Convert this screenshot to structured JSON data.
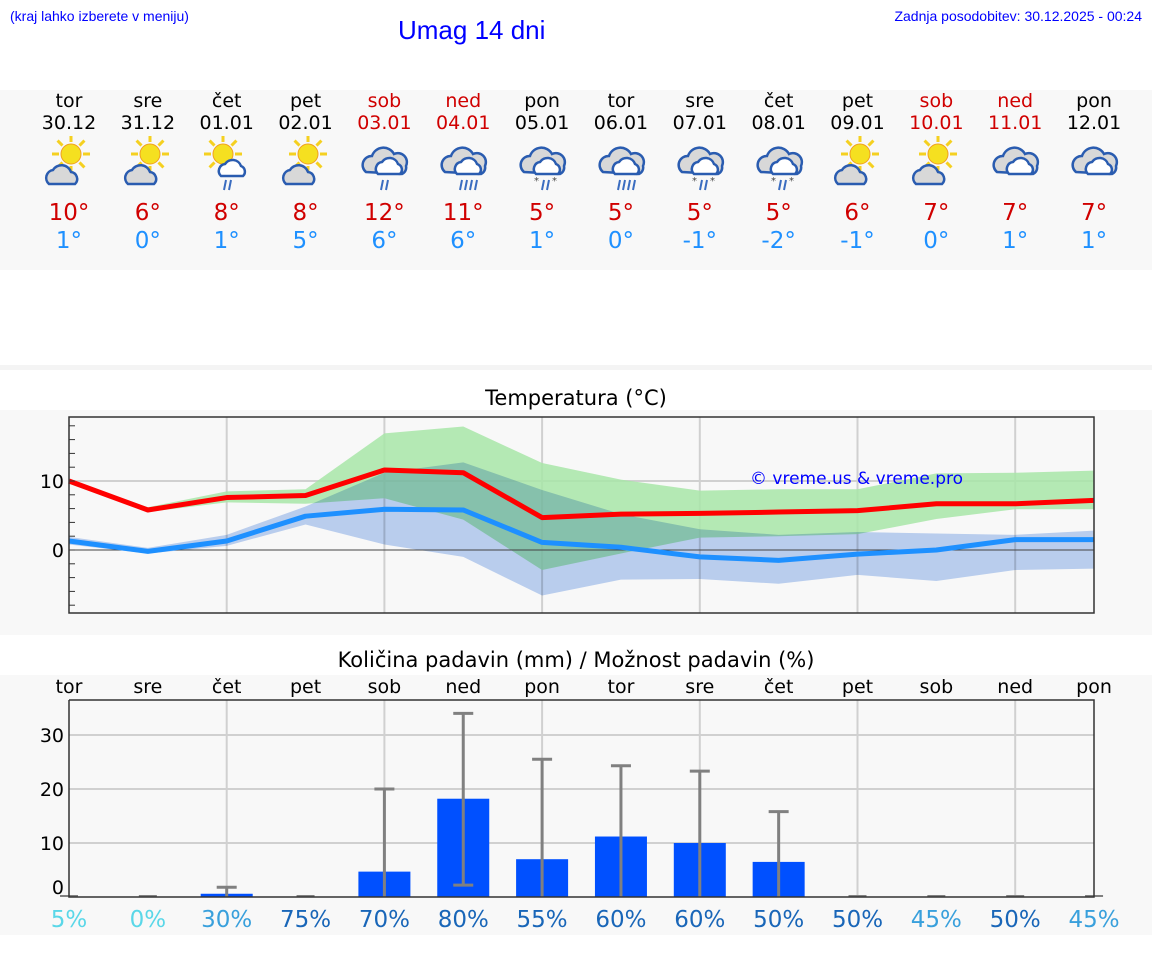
{
  "header": {
    "hint": "(kraj lahko izberete v meniju)",
    "title": "Umag 14 dni",
    "updated": "Zadnja posodobitev: 30.12.2025 - 00:24"
  },
  "days": [
    {
      "name": "tor",
      "date": "30.12",
      "icon": "partly-cloudy",
      "max": "10°",
      "min": "1°",
      "weekend": false
    },
    {
      "name": "sre",
      "date": "31.12",
      "icon": "partly-cloudy",
      "max": "6°",
      "min": "0°",
      "weekend": false
    },
    {
      "name": "čet",
      "date": "01.01",
      "icon": "sun-cloud-rain",
      "max": "8°",
      "min": "1°",
      "weekend": false
    },
    {
      "name": "pet",
      "date": "02.01",
      "icon": "partly-cloudy",
      "max": "8°",
      "min": "5°",
      "weekend": false
    },
    {
      "name": "sob",
      "date": "03.01",
      "icon": "cloudy-light-rain",
      "max": "12°",
      "min": "6°",
      "weekend": true
    },
    {
      "name": "ned",
      "date": "04.01",
      "icon": "cloudy-rain",
      "max": "11°",
      "min": "6°",
      "weekend": true
    },
    {
      "name": "pon",
      "date": "05.01",
      "icon": "cloudy-sleet",
      "max": "5°",
      "min": "1°",
      "weekend": false
    },
    {
      "name": "tor",
      "date": "06.01",
      "icon": "cloudy-rain",
      "max": "5°",
      "min": "0°",
      "weekend": false
    },
    {
      "name": "sre",
      "date": "07.01",
      "icon": "cloudy-sleet",
      "max": "5°",
      "min": "-1°",
      "weekend": false
    },
    {
      "name": "čet",
      "date": "08.01",
      "icon": "cloudy-sleet",
      "max": "5°",
      "min": "-2°",
      "weekend": false
    },
    {
      "name": "pet",
      "date": "09.01",
      "icon": "partly-cloudy",
      "max": "6°",
      "min": "-1°",
      "weekend": false
    },
    {
      "name": "sob",
      "date": "10.01",
      "icon": "partly-cloudy",
      "max": "7°",
      "min": "0°",
      "weekend": true
    },
    {
      "name": "ned",
      "date": "11.01",
      "icon": "cloudy",
      "max": "7°",
      "min": "1°",
      "weekend": true
    },
    {
      "name": "pon",
      "date": "12.01",
      "icon": "cloudy",
      "max": "7°",
      "min": "1°",
      "weekend": false
    }
  ],
  "colors": {
    "max": "#ff0000",
    "min": "#1e90ff",
    "maxBand": "#a8e6a8",
    "minBand": "#a8c4f0",
    "bar": "#0050ff",
    "err": "#808080"
  },
  "chart_data": [
    {
      "type": "line",
      "title": "Temperatura (°C)",
      "watermark": "© vreme.us & vreme.pro",
      "ylim": [
        -9,
        19
      ],
      "yticks": [
        0,
        10
      ],
      "series": [
        {
          "name": "max",
          "values": [
            10,
            5.8,
            7.6,
            7.9,
            11.6,
            11.2,
            4.7,
            5.2,
            5.3,
            5.5,
            5.7,
            6.7,
            6.7,
            7.2
          ],
          "band": {
            "upper": [
              10.2,
              6.2,
              8.5,
              8.8,
              16.9,
              17.9,
              12.6,
              10.2,
              8.6,
              8.8,
              8.8,
              11.1,
              11.2,
              11.5
            ],
            "lower": [
              9.6,
              5.5,
              6.9,
              6.7,
              7.5,
              4.4,
              -2.9,
              -0.5,
              1.8,
              2.0,
              2.3,
              4.5,
              5.9,
              5.9
            ]
          }
        },
        {
          "name": "min",
          "values": [
            1.3,
            -0.2,
            1.3,
            4.9,
            5.9,
            5.8,
            1.1,
            0.4,
            -1,
            -1.5,
            -0.6,
            0,
            1.5,
            1.5
          ],
          "band": {
            "upper": [
              1.9,
              0.3,
              2.2,
              6.3,
              11.2,
              12.7,
              8.7,
              5.2,
              3,
              2.2,
              2.6,
              2.4,
              2.2,
              2.8
            ],
            "lower": [
              0.8,
              -0.5,
              0.6,
              3.7,
              0.8,
              -1,
              -6.6,
              -4.3,
              -4.2,
              -4.9,
              -3.6,
              -4.5,
              -2.9,
              -2.7
            ]
          }
        }
      ]
    },
    {
      "type": "bar",
      "title": "Količina padavin (mm) / Možnost padavin (%)",
      "ylim": [
        0,
        36
      ],
      "yticks": [
        0,
        10,
        20,
        30
      ],
      "categories": [
        "tor",
        "sre",
        "čet",
        "pet",
        "sob",
        "ned",
        "pon",
        "tor",
        "sre",
        "čet",
        "pet",
        "sob",
        "ned",
        "pon"
      ],
      "values": [
        0,
        0,
        0.6,
        0,
        4.7,
        18.2,
        7,
        11.2,
        10,
        6.5,
        0,
        0,
        0,
        0
      ],
      "err_low": [
        0,
        0,
        0,
        0,
        0,
        2.2,
        0,
        0,
        0,
        0,
        0,
        0,
        0,
        0
      ],
      "err_high": [
        0,
        0,
        1.8,
        0,
        20,
        34,
        25.5,
        24.3,
        23.3,
        15.8,
        0,
        0,
        0,
        0
      ],
      "probability": [
        "5%",
        "0%",
        "30%",
        "75%",
        "70%",
        "80%",
        "55%",
        "60%",
        "60%",
        "50%",
        "50%",
        "45%",
        "50%",
        "45%"
      ]
    }
  ]
}
